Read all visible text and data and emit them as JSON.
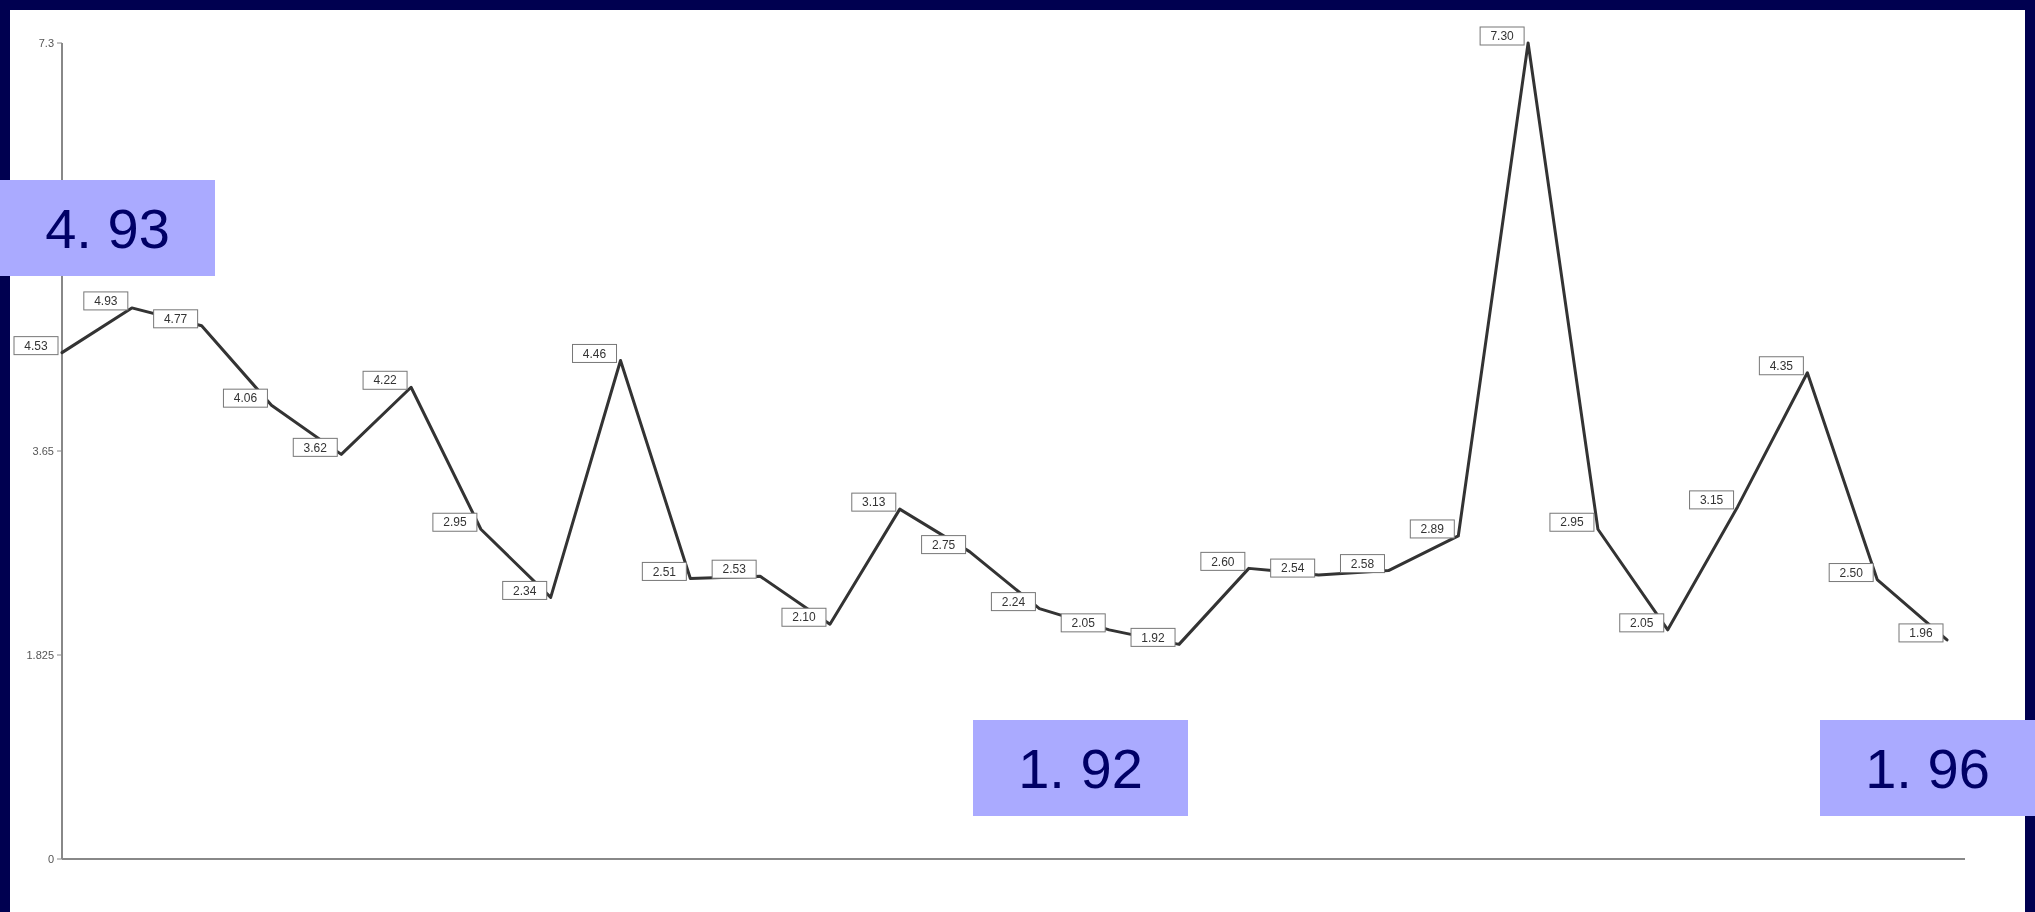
{
  "chart_data": {
    "type": "line",
    "categories": [
      null,
      null,
      null,
      null,
      null,
      null,
      null,
      null,
      null,
      null,
      null,
      null,
      null,
      null,
      null,
      null,
      null,
      null,
      null,
      null,
      null,
      null,
      null,
      null,
      null,
      null,
      null,
      null
    ],
    "series": [
      {
        "color": "#333333",
        "values": [
          4.53,
          4.93,
          4.77,
          4.06,
          3.62,
          4.22,
          2.95,
          2.34,
          4.46,
          2.51,
          2.53,
          2.1,
          3.13,
          2.75,
          2.24,
          2.05,
          1.92,
          2.6,
          2.54,
          2.58,
          2.89,
          7.3,
          2.95,
          2.05,
          3.15,
          4.35,
          2.5,
          1.96
        ],
        "value_labels": [
          "4.53",
          "4.93",
          "4.77",
          "4.06",
          "3.62",
          "4.22",
          "2.95",
          "2.34",
          "4.46",
          "2.51",
          "2.53",
          "2.10",
          "3.13",
          "2.75",
          "2.24",
          "2.05",
          "1.92",
          "2.60",
          "2.54",
          "2.58",
          "2.89",
          "7.30",
          "2.95",
          "2.05",
          "3.15",
          "4.35",
          "2.50",
          "1.96"
        ]
      }
    ],
    "ylim": [
      0,
      7.3
    ],
    "yticks": [
      0,
      1.825,
      3.65,
      7.3
    ],
    "grid": false,
    "marker": "none",
    "line_style": "solid",
    "tick_labels": "y",
    "annotations": [
      "4. 93",
      "1. 92",
      "1. 96"
    ]
  }
}
